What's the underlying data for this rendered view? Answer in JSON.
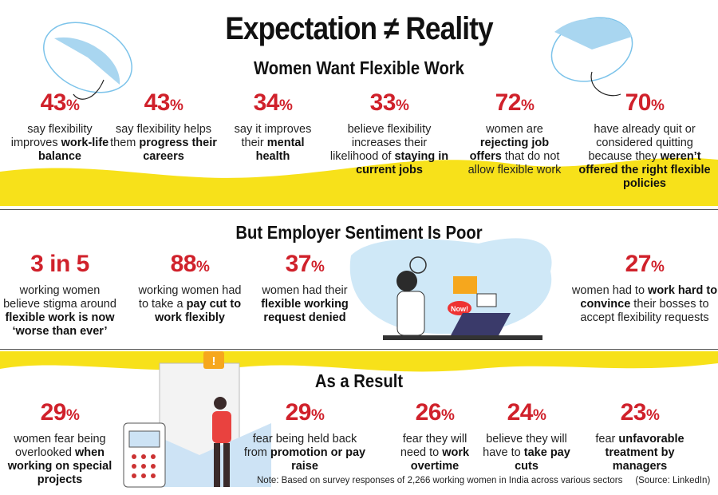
{
  "title": "Expectation ≠ Reality",
  "sections": [
    {
      "heading": "Women Want Flexible Work",
      "stats": [
        {
          "value": "43",
          "unit": "%",
          "text": [
            {
              "t": "say flexibility improves ",
              "b": false
            },
            {
              "t": "work-life balance",
              "b": true
            }
          ]
        },
        {
          "value": "43",
          "unit": "%",
          "text": [
            {
              "t": "say flexibility helps them ",
              "b": false
            },
            {
              "t": "progress their careers",
              "b": true
            }
          ]
        },
        {
          "value": "34",
          "unit": "%",
          "text": [
            {
              "t": "say it improves their ",
              "b": false
            },
            {
              "t": "mental health",
              "b": true
            }
          ]
        },
        {
          "value": "33",
          "unit": "%",
          "text": [
            {
              "t": "believe flexibility increases their likelihood of ",
              "b": false
            },
            {
              "t": "staying in current jobs",
              "b": true
            }
          ]
        },
        {
          "value": "72",
          "unit": "%",
          "text": [
            {
              "t": "women are ",
              "b": false
            },
            {
              "t": "rejecting job offers",
              "b": true
            },
            {
              "t": " that do not allow flexible work",
              "b": false
            }
          ]
        },
        {
          "value": "70",
          "unit": "%",
          "text": [
            {
              "t": "have already quit or considered quitting because they ",
              "b": false
            },
            {
              "t": "weren’t offered the right flexible policies",
              "b": true
            }
          ]
        }
      ]
    },
    {
      "heading": "But Employer Sentiment Is Poor",
      "stats": [
        {
          "value": "3 in 5",
          "unit": "",
          "text": [
            {
              "t": "working women believe stigma around ",
              "b": false
            },
            {
              "t": "flexible work is now ‘worse than ever’",
              "b": true
            }
          ]
        },
        {
          "value": "88",
          "unit": "%",
          "text": [
            {
              "t": "working women had to take a ",
              "b": false
            },
            {
              "t": "pay cut to work flexibly",
              "b": true
            }
          ]
        },
        {
          "value": "37",
          "unit": "%",
          "text": [
            {
              "t": "women had their ",
              "b": false
            },
            {
              "t": "flexible working request",
              "b": true
            },
            {
              "t": " ",
              "b": false
            },
            {
              "t": "denied",
              "b": true
            }
          ]
        },
        {
          "value": "27",
          "unit": "%",
          "text": [
            {
              "t": "women had to ",
              "b": false
            },
            {
              "t": "work hard to convince",
              "b": true
            },
            {
              "t": " their bosses to accept flexibility requests",
              "b": false
            }
          ]
        }
      ]
    },
    {
      "heading": "As a Result",
      "stats": [
        {
          "value": "29",
          "unit": "%",
          "text": [
            {
              "t": "women fear being overlooked ",
              "b": false
            },
            {
              "t": "when working on special projects",
              "b": true
            }
          ]
        },
        {
          "value": "29",
          "unit": "%",
          "text": [
            {
              "t": "fear being held back from ",
              "b": false
            },
            {
              "t": "promotion or pay raise",
              "b": true
            }
          ]
        },
        {
          "value": "26",
          "unit": "%",
          "text": [
            {
              "t": "fear they will need to ",
              "b": false
            },
            {
              "t": "work overtime",
              "b": true
            }
          ]
        },
        {
          "value": "24",
          "unit": "%",
          "text": [
            {
              "t": "believe they will have to ",
              "b": false
            },
            {
              "t": "take pay cuts",
              "b": true
            }
          ]
        },
        {
          "value": "23",
          "unit": "%",
          "text": [
            {
              "t": "fear ",
              "b": false
            },
            {
              "t": "unfavorable treatment by managers",
              "b": true
            }
          ]
        }
      ]
    }
  ],
  "illustration": {
    "bubble_label": "Now!",
    "alert_symbol": "!"
  },
  "note": "Note: Based on survey responses of 2,266 working women in India across various sectors",
  "source": "(Source: LinkedIn)",
  "colors": {
    "accent": "#d0212b",
    "yellow": "#f7e11a",
    "light_blue": "#a9d6f0"
  }
}
